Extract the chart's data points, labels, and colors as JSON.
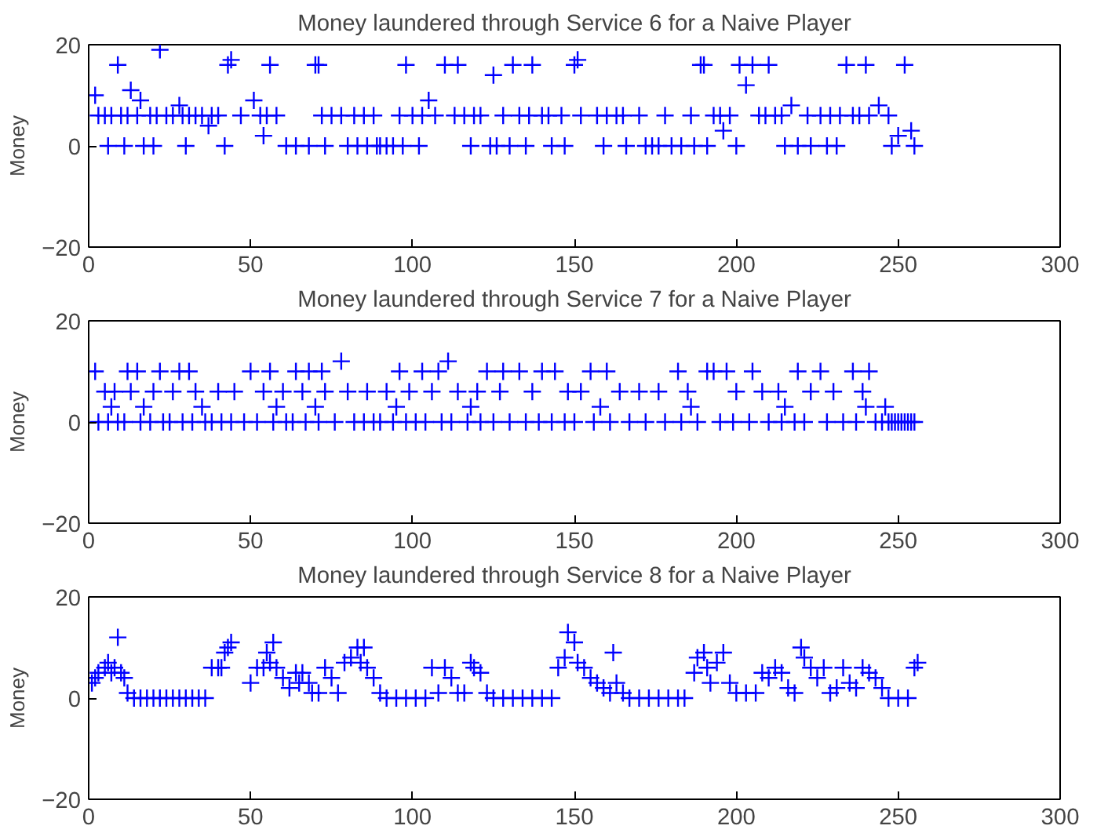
{
  "chart_data": [
    {
      "type": "scatter",
      "title": "Money laundered through Service 6 for a Naive Player",
      "ylabel": "Money",
      "marker": "cross",
      "grid": false,
      "xlim": [
        0,
        300
      ],
      "ylim": [
        -20,
        20
      ],
      "xticks": [
        0,
        50,
        100,
        150,
        200,
        250,
        300
      ],
      "yticks": [
        -20,
        0,
        20
      ],
      "series": [
        {
          "color": "#0000ff",
          "x": [
            9,
            22,
            43,
            44,
            56,
            70,
            71,
            98,
            110,
            114,
            125,
            131,
            137,
            150,
            151,
            189,
            190,
            201,
            205,
            210,
            234,
            240,
            252,
            2,
            13,
            16,
            28,
            51,
            105,
            203,
            217,
            244,
            3,
            5,
            7,
            10,
            12,
            15,
            19,
            21,
            24,
            26,
            29,
            31,
            33,
            35,
            38,
            40,
            47,
            53,
            55,
            58,
            72,
            75,
            78,
            82,
            85,
            88,
            96,
            100,
            103,
            107,
            113,
            116,
            119,
            121,
            128,
            133,
            136,
            140,
            142,
            146,
            152,
            157,
            160,
            163,
            165,
            170,
            178,
            186,
            193,
            195,
            198,
            207,
            209,
            212,
            214,
            222,
            226,
            229,
            232,
            236,
            238,
            241,
            247,
            250,
            254,
            37,
            54,
            196,
            6,
            11,
            17,
            20,
            30,
            42,
            61,
            64,
            68,
            73,
            80,
            83,
            86,
            89,
            90,
            92,
            94,
            97,
            102,
            118,
            124,
            126,
            130,
            135,
            143,
            147,
            159,
            166,
            172,
            174,
            176,
            180,
            183,
            187,
            191,
            200,
            215,
            219,
            223,
            228,
            231,
            248,
            255
          ],
          "values": [
            16,
            19,
            16,
            17,
            16,
            16,
            16,
            16,
            16,
            16,
            14,
            16,
            16,
            16,
            17,
            16,
            16,
            16,
            16,
            16,
            16,
            16,
            16,
            10,
            11,
            9,
            8,
            9,
            9,
            12,
            8,
            8,
            6,
            6,
            6,
            6,
            6,
            6,
            6,
            6,
            6,
            6,
            6,
            6,
            6,
            6,
            6,
            6,
            6,
            6,
            6,
            6,
            6,
            6,
            6,
            6,
            6,
            6,
            6,
            6,
            6,
            6,
            6,
            6,
            6,
            6,
            6,
            6,
            6,
            6,
            6,
            6,
            6,
            6,
            6,
            6,
            6,
            6,
            6,
            6,
            6,
            6,
            6,
            6,
            6,
            6,
            6,
            6,
            6,
            6,
            6,
            6,
            6,
            6,
            6,
            2,
            3,
            4,
            2,
            3,
            0,
            0,
            0,
            0,
            0,
            0,
            0,
            0,
            0,
            0,
            0,
            0,
            0,
            0,
            0,
            0,
            0,
            0,
            0,
            0,
            0,
            0,
            0,
            0,
            0,
            0,
            0,
            0,
            0,
            0,
            0,
            0,
            0,
            0,
            0,
            0,
            0,
            0,
            0,
            0,
            0,
            0,
            0
          ]
        }
      ]
    },
    {
      "type": "scatter",
      "title": "Money laundered through Service 7 for a Naive Player",
      "ylabel": "Money",
      "marker": "cross",
      "grid": false,
      "xlim": [
        0,
        300
      ],
      "ylim": [
        -20,
        20
      ],
      "xticks": [
        0,
        50,
        100,
        150,
        200,
        250,
        300
      ],
      "yticks": [
        -20,
        0,
        20
      ],
      "series": [
        {
          "color": "#0000ff",
          "x": [
            2,
            12,
            15,
            22,
            28,
            31,
            50,
            56,
            64,
            68,
            72,
            96,
            103,
            108,
            123,
            128,
            133,
            140,
            144,
            155,
            160,
            182,
            191,
            193,
            197,
            205,
            219,
            226,
            236,
            241,
            78,
            111,
            5,
            8,
            13,
            20,
            26,
            33,
            40,
            45,
            54,
            60,
            66,
            73,
            80,
            86,
            92,
            99,
            106,
            114,
            120,
            127,
            137,
            148,
            152,
            164,
            170,
            176,
            185,
            200,
            208,
            213,
            223,
            230,
            239,
            7,
            17,
            35,
            58,
            70,
            95,
            118,
            158,
            186,
            215,
            240,
            246,
            3,
            6,
            9,
            11,
            16,
            19,
            23,
            25,
            29,
            32,
            36,
            38,
            41,
            44,
            48,
            52,
            57,
            61,
            63,
            67,
            71,
            76,
            82,
            85,
            88,
            90,
            94,
            98,
            101,
            104,
            109,
            112,
            117,
            121,
            125,
            130,
            135,
            139,
            143,
            147,
            150,
            156,
            161,
            167,
            172,
            178,
            183,
            188,
            195,
            199,
            204,
            210,
            214,
            218,
            221,
            228,
            233,
            237,
            243,
            245,
            247,
            248,
            249,
            250,
            251,
            252,
            253,
            254,
            255
          ],
          "values": [
            10,
            10,
            10,
            10,
            10,
            10,
            10,
            10,
            10,
            10,
            10,
            10,
            10,
            10,
            10,
            10,
            10,
            10,
            10,
            10,
            10,
            10,
            10,
            10,
            10,
            10,
            10,
            10,
            10,
            10,
            12,
            12,
            6,
            6,
            6,
            6,
            6,
            6,
            6,
            6,
            6,
            6,
            6,
            6,
            6,
            6,
            6,
            6,
            6,
            6,
            6,
            6,
            6,
            6,
            6,
            6,
            6,
            6,
            6,
            6,
            6,
            6,
            6,
            6,
            6,
            3,
            3,
            3,
            3,
            3,
            3,
            3,
            3,
            3,
            3,
            3,
            3,
            0,
            0,
            0,
            0,
            0,
            0,
            0,
            0,
            0,
            0,
            0,
            0,
            0,
            0,
            0,
            0,
            0,
            0,
            0,
            0,
            0,
            0,
            0,
            0,
            0,
            0,
            0,
            0,
            0,
            0,
            0,
            0,
            0,
            0,
            0,
            0,
            0,
            0,
            0,
            0,
            0,
            0,
            0,
            0,
            0,
            0,
            0,
            0,
            0,
            0,
            0,
            0,
            0,
            0,
            0,
            0,
            0,
            0,
            0,
            0,
            0,
            0,
            0,
            0,
            0,
            0,
            0,
            0,
            0
          ]
        }
      ]
    },
    {
      "type": "scatter",
      "title": "Money laundered through Service 8 for a Naive Player",
      "ylabel": "Money",
      "marker": "cross",
      "grid": false,
      "xlim": [
        0,
        300
      ],
      "ylim": [
        -20,
        20
      ],
      "xticks": [
        0,
        50,
        100,
        150,
        200,
        250,
        300
      ],
      "yticks": [
        -20,
        0,
        20
      ],
      "series": [
        {
          "color": "#0000ff",
          "x": [
            1,
            2,
            3,
            5,
            6,
            7,
            8,
            9,
            10,
            11,
            12,
            14,
            16,
            18,
            20,
            22,
            24,
            26,
            28,
            30,
            32,
            34,
            36,
            38,
            40,
            41,
            42,
            43,
            44,
            50,
            52,
            54,
            55,
            56,
            57,
            58,
            60,
            62,
            64,
            65,
            66,
            68,
            69,
            71,
            73,
            75,
            77,
            79,
            81,
            83,
            84,
            85,
            86,
            88,
            90,
            92,
            95,
            98,
            101,
            104,
            106,
            108,
            110,
            112,
            114,
            116,
            118,
            119,
            121,
            123,
            125,
            128,
            131,
            134,
            137,
            140,
            143,
            145,
            147,
            148,
            150,
            151,
            153,
            155,
            157,
            159,
            161,
            162,
            163,
            165,
            167,
            170,
            173,
            176,
            179,
            182,
            184,
            187,
            188,
            190,
            191,
            192,
            194,
            196,
            198,
            200,
            203,
            206,
            208,
            210,
            212,
            214,
            216,
            218,
            220,
            221,
            223,
            225,
            227,
            229,
            231,
            233,
            235,
            237,
            239,
            241,
            243,
            245,
            247,
            250,
            253,
            255,
            256
          ],
          "values": [
            3,
            4,
            5,
            6,
            7,
            5,
            6,
            12,
            5,
            4,
            1,
            0,
            0,
            0,
            0,
            0,
            0,
            0,
            0,
            0,
            0,
            0,
            0,
            6,
            6,
            6,
            9,
            10,
            11,
            3,
            6,
            6,
            9,
            7,
            11,
            6,
            4,
            2,
            5,
            3,
            5,
            3,
            1,
            1,
            6,
            4,
            1,
            7,
            8,
            10,
            7,
            10,
            6,
            4,
            1,
            0,
            0,
            0,
            0,
            0,
            6,
            1,
            6,
            4,
            1,
            1,
            7,
            6,
            5,
            1,
            0,
            0,
            0,
            0,
            0,
            0,
            0,
            6,
            8,
            13,
            11,
            7,
            6,
            4,
            3,
            2,
            1,
            9,
            3,
            1,
            0,
            0,
            0,
            0,
            0,
            0,
            0,
            5,
            8,
            9,
            6,
            3,
            7,
            9,
            3,
            1,
            1,
            1,
            5,
            4,
            6,
            5,
            2,
            1,
            10,
            8,
            6,
            4,
            6,
            1,
            2,
            6,
            3,
            2,
            6,
            5,
            4,
            2,
            0,
            0,
            0,
            6,
            7
          ]
        }
      ]
    }
  ]
}
